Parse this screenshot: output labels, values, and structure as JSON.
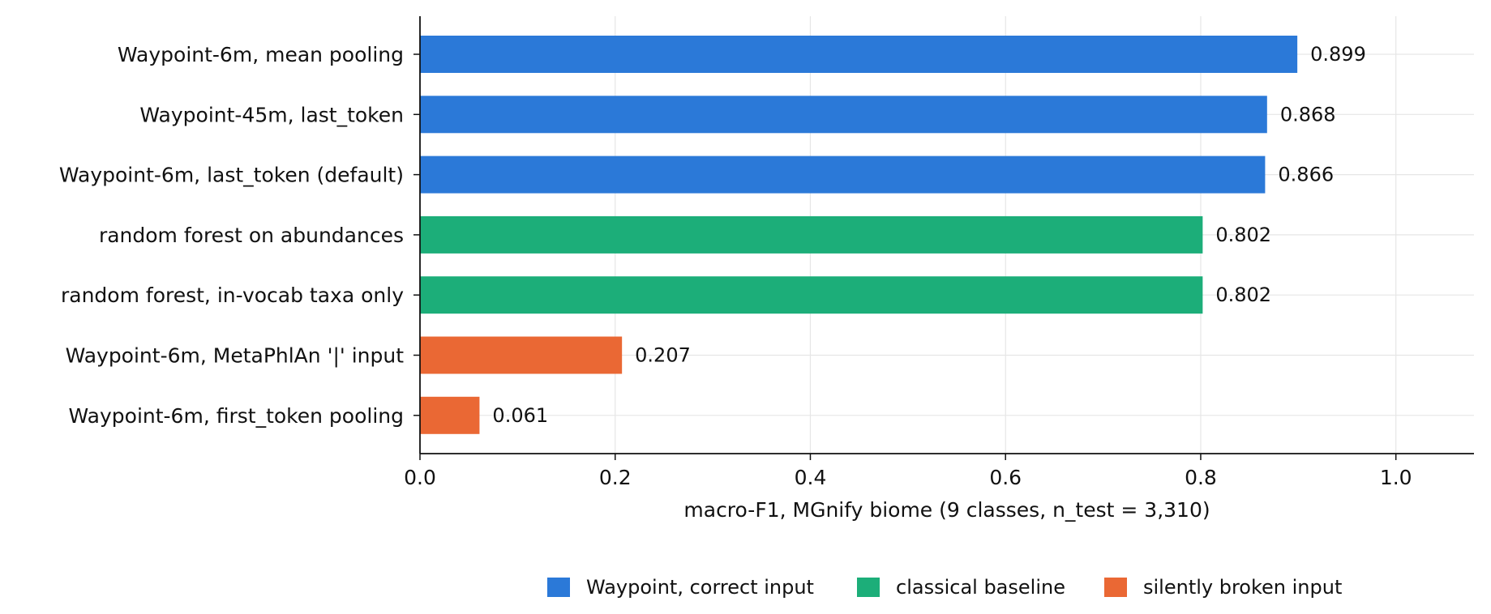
{
  "chart_data": {
    "type": "bar",
    "orientation": "horizontal",
    "categories": [
      "Waypoint-6m, mean pooling",
      "Waypoint-45m, last_token",
      "Waypoint-6m, last_token (default)",
      "random forest on abundances",
      "random forest, in-vocab taxa only",
      "Waypoint-6m, MetaPhlAn '|' input",
      "Waypoint-6m, first_token pooling"
    ],
    "values": [
      0.899,
      0.868,
      0.866,
      0.802,
      0.802,
      0.207,
      0.061
    ],
    "value_labels": [
      "0.899",
      "0.868",
      "0.866",
      "0.802",
      "0.802",
      "0.207",
      "0.061"
    ],
    "groups": [
      "Waypoint, correct input",
      "Waypoint, correct input",
      "Waypoint, correct input",
      "classical baseline",
      "classical baseline",
      "silently broken input",
      "silently broken input"
    ],
    "xlabel": "macro-F1, MGnify biome (9 classes, n_test = 3,310)",
    "ylabel": "",
    "title": "",
    "xlim": [
      0,
      1.08
    ],
    "xticks": [
      0.0,
      0.2,
      0.4,
      0.6,
      0.8,
      1.0
    ],
    "xtick_labels": [
      "0.0",
      "0.2",
      "0.4",
      "0.6",
      "0.8",
      "1.0"
    ],
    "grid": true,
    "legend": {
      "placement": "bottom-center",
      "entries": [
        {
          "label": "Waypoint, correct input",
          "color": "#2b79d8"
        },
        {
          "label": "classical baseline",
          "color": "#1cae79"
        },
        {
          "label": "silently broken input",
          "color": "#ea6834"
        }
      ]
    }
  }
}
